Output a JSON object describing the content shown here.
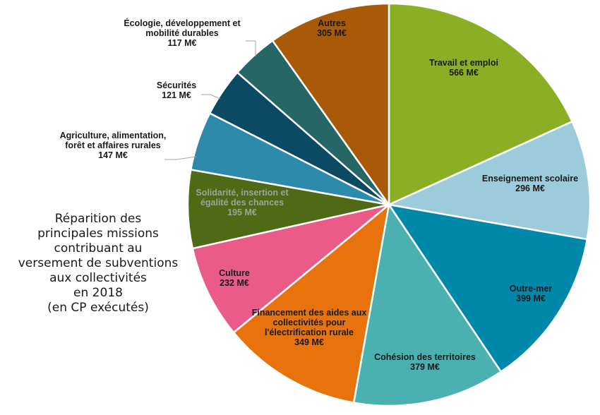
{
  "chart_data": {
    "type": "pie",
    "title_lines": [
      "Réparition des",
      "principales missions",
      "contribuant au",
      "versement de subventions",
      "aux collectivités",
      "en 2018",
      "(en CP exécutés)"
    ],
    "unit": "M€",
    "slices": [
      {
        "label_lines": [
          "Travail et emploi"
        ],
        "value": 566,
        "value_label": "566 M€",
        "color": "#8aaf24",
        "label_color": "#1a1a1a"
      },
      {
        "label_lines": [
          "Enseignement scolaire"
        ],
        "value": 296,
        "value_label": "296 M€",
        "color": "#9ccbdc",
        "label_color": "#1a1a1a"
      },
      {
        "label_lines": [
          "Outre-mer"
        ],
        "value": 399,
        "value_label": "399 M€",
        "color": "#0088aa",
        "label_color": "#1a1a1a"
      },
      {
        "label_lines": [
          "Cohésion des territoires"
        ],
        "value": 379,
        "value_label": "379 M€",
        "color": "#4bb0b0",
        "label_color": "#1a1a1a"
      },
      {
        "label_lines": [
          "Financement des aides aux",
          "collectivités pour",
          "l'électrification rurale"
        ],
        "value": 349,
        "value_label": "349 M€",
        "color": "#e8730c",
        "label_color": "#1a1a1a"
      },
      {
        "label_lines": [
          "Culture"
        ],
        "value": 232,
        "value_label": "232 M€",
        "color": "#ea5b8a",
        "label_color": "#1a1a1a"
      },
      {
        "label_lines": [
          "Solidarité, insertion et",
          "égalité des chances"
        ],
        "value": 195,
        "value_label": "195 M€",
        "color": "#4e6a14",
        "label_color": "#9aa59a"
      },
      {
        "label_lines": [
          "Agriculture, alimentation,",
          "forêt et affaires rurales"
        ],
        "value": 147,
        "value_label": "147 M€",
        "color": "#2e8aaa",
        "label_color": "#1a1a1a"
      },
      {
        "label_lines": [
          "Sécurités"
        ],
        "value": 121,
        "value_label": "121 M€",
        "color": "#0b4a62",
        "label_color": "#1a1a1a"
      },
      {
        "label_lines": [
          "Écologie, développement et",
          "mobilité durables"
        ],
        "value": 117,
        "value_label": "117 M€",
        "color": "#276666",
        "label_color": "#1a1a1a"
      },
      {
        "label_lines": [
          "Autres"
        ],
        "value": 305,
        "value_label": "305 M€",
        "color": "#a85a08",
        "label_color": "#1a1a1a"
      }
    ]
  }
}
